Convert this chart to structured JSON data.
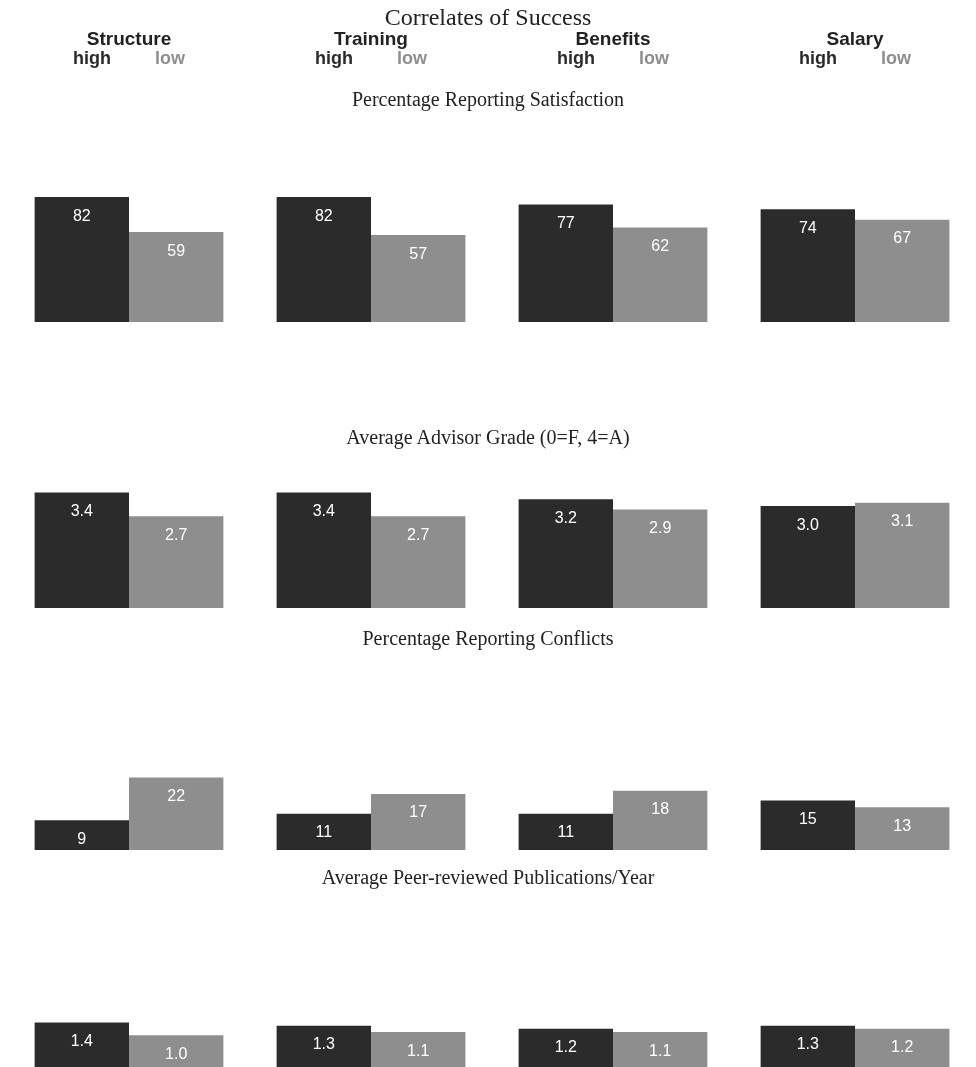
{
  "chart_data": [
    {
      "type": "bar",
      "title": "Correlates of Success",
      "subtitle": "Percentage Reporting Satisfaction",
      "categories": [
        "Structure",
        "Training",
        "Benefits",
        "Salary"
      ],
      "series": [
        {
          "name": "high",
          "color": "#2b2b2b",
          "values": [
            82,
            82,
            77,
            74
          ]
        },
        {
          "name": "low",
          "color": "#8e8e8e",
          "values": [
            59,
            57,
            62,
            67
          ]
        }
      ],
      "data_labels": true
    },
    {
      "type": "bar",
      "title": "Average Advisor Grade (0=F, 4=A)",
      "categories": [
        null,
        null,
        null,
        null
      ],
      "series": [
        {
          "color": "#2b2b2b",
          "values": [
            3.4,
            3.4,
            3.2,
            3.0
          ],
          "value_labels": [
            "3.4",
            "3.4",
            "3.2",
            "3.0"
          ]
        },
        {
          "color": "#8e8e8e",
          "values": [
            2.7,
            2.7,
            2.9,
            3.1
          ],
          "value_labels": [
            "2.7",
            "2.7",
            "2.9",
            "3.1"
          ]
        }
      ]
    },
    {
      "type": "bar",
      "title": "Percentage Reporting Conflicts",
      "categories": [
        null,
        null,
        null,
        null
      ],
      "series": [
        {
          "color": "#2b2b2b",
          "values": [
            9,
            11,
            11,
            15
          ]
        },
        {
          "color": "#8e8e8e",
          "values": [
            22,
            17,
            18,
            13
          ]
        }
      ],
      "data_labels": true
    },
    {
      "type": "bar",
      "title": "Average Peer-reviewed Publications/Year",
      "categories": [
        null,
        null,
        null,
        null
      ],
      "series": [
        {
          "color": "#2b2b2b",
          "values": [
            1.4,
            1.3,
            1.2,
            1.3
          ],
          "value_labels": [
            "1.4",
            "1.3",
            "1.2",
            "1.3"
          ]
        },
        {
          "color": "#8e8e8e",
          "values": [
            1.0,
            1.1,
            1.1,
            1.2
          ],
          "value_labels": [
            "1.0",
            "1.1",
            "1.1",
            "1.2"
          ]
        }
      ]
    }
  ]
}
